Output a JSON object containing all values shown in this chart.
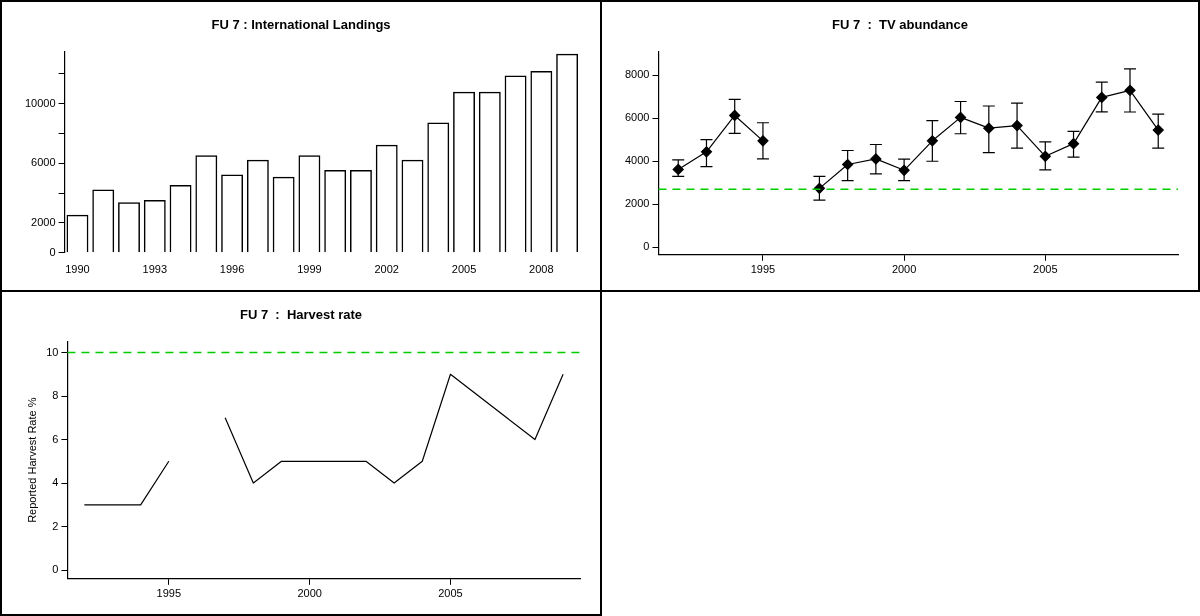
{
  "chart_data": [
    {
      "type": "bar",
      "title": "FU 7 : International Landings",
      "categories": [
        "1990",
        null,
        null,
        "1993",
        null,
        null,
        "1996",
        null,
        null,
        "1999",
        null,
        null,
        "2002",
        null,
        null,
        "2005",
        null,
        null,
        "2008",
        null
      ],
      "series": [
        {
          "color": "#000000",
          "values": [
            2550,
            4250,
            3400,
            3550,
            4550,
            6550,
            5250,
            6250,
            5100,
            6550,
            5550,
            5550,
            7250,
            6250,
            8750,
            10800,
            10800,
            11900,
            12200,
            13350
          ]
        }
      ],
      "ylim": [
        0,
        13500
      ],
      "yticks": [
        0,
        2000,
        {
          "value": 4000,
          "label": null
        },
        6000,
        {
          "value": 8000,
          "label": null
        },
        10000,
        {
          "value": 12000,
          "label": null
        }
      ],
      "grid": false,
      "legend": false
    },
    {
      "type": "line",
      "title": "FU 7  :  TV abundance",
      "x": [
        1992,
        1993,
        1994,
        1995,
        1996,
        1997,
        1998,
        1999,
        2000,
        2001,
        2002,
        2003,
        2004,
        2005,
        2006,
        2007,
        2008,
        2009
      ],
      "series": [
        {
          "color": "#000000",
          "values": [
            3620,
            4440,
            6130,
            4950,
            null,
            2740,
            3850,
            4110,
            3580,
            4950,
            6040,
            5540,
            5660,
            4230,
            4820,
            6970,
            7300,
            5450
          ],
          "errors": [
            [
              3300,
              4060
            ],
            [
              3750,
              5010
            ],
            [
              5300,
              6880
            ],
            [
              4110,
              5790
            ],
            null,
            [
              2190,
              3300
            ],
            [
              3100,
              4500
            ],
            [
              3410,
              4780
            ],
            [
              3100,
              4100
            ],
            [
              4000,
              5890
            ],
            [
              5280,
              6780
            ],
            [
              4400,
              6570
            ],
            [
              4610,
              6700
            ],
            [
              3600,
              4900
            ],
            [
              4190,
              5390
            ],
            [
              6300,
              7680
            ],
            [
              6290,
              8300
            ],
            [
              4610,
              6190
            ]
          ]
        }
      ],
      "xlim": [
        1991.3,
        2009.7
      ],
      "xticks": [
        1995,
        2000,
        2005
      ],
      "ylim": [
        -350,
        9100
      ],
      "yticks": [
        0,
        2000,
        4000,
        6000,
        8000
      ],
      "ref_lines": [
        {
          "axis": "y",
          "value": 2700,
          "label": null,
          "color": "#00cc00",
          "line_style": "dashed"
        }
      ],
      "marker": "diamond",
      "line_style": "solid",
      "grid": false,
      "legend": false
    },
    {
      "type": "line",
      "title": "FU 7  :  Harvest rate",
      "ylabel": "Reported Harvest Rate %",
      "x": [
        1992,
        1993,
        1994,
        1995,
        1996,
        1997,
        1998,
        1999,
        2000,
        2001,
        2002,
        2003,
        2004,
        2005,
        2006,
        2007,
        2008,
        2009
      ],
      "series": [
        {
          "color": "#000000",
          "values": [
            3,
            3,
            3,
            5,
            null,
            7,
            4,
            5,
            5,
            5,
            5,
            4,
            5,
            9,
            8,
            7,
            6,
            9
          ]
        }
      ],
      "xlim": [
        1991.4,
        2009.6
      ],
      "xticks": [
        1995,
        2000,
        2005
      ],
      "ylim": [
        -0.4,
        10.5
      ],
      "yticks": [
        0,
        2,
        4,
        6,
        8,
        10
      ],
      "ref_lines": [
        {
          "axis": "y",
          "value": 10,
          "label": null,
          "color": "#00cc00",
          "line_style": "dashed"
        }
      ],
      "marker": "none",
      "line_style": "solid",
      "grid": false,
      "legend": false
    }
  ]
}
